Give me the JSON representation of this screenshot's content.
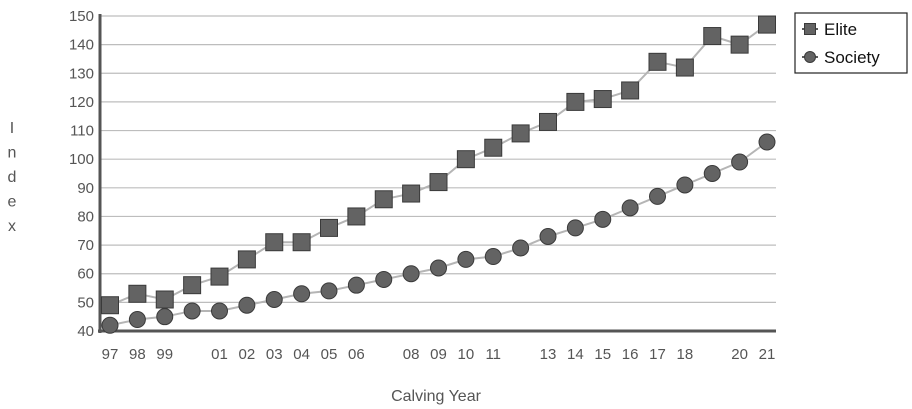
{
  "chart_data": {
    "type": "line",
    "xlabel": "Calving Year",
    "ylabel": "I n d e x",
    "ylim": [
      40,
      150
    ],
    "yticks": [
      40,
      50,
      60,
      70,
      80,
      90,
      100,
      110,
      120,
      130,
      140,
      150
    ],
    "x": [
      1997,
      1998,
      1999,
      2000,
      2001,
      2002,
      2003,
      2004,
      2005,
      2006,
      2007,
      2008,
      2009,
      2010,
      2011,
      2012,
      2013,
      2014,
      2015,
      2016,
      2017,
      2018,
      2019,
      2020,
      2021
    ],
    "xtick_labels": {
      "1997": "97",
      "1998": "98",
      "1999": "99",
      "2001": "01",
      "2002": "02",
      "2003": "03",
      "2004": "04",
      "2005": "05",
      "2006": "06",
      "2008": "08",
      "2009": "09",
      "2010": "10",
      "2011": "11",
      "2013": "13",
      "2014": "14",
      "2015": "15",
      "2016": "16",
      "2017": "17",
      "2018": "18",
      "2020": "20",
      "2021": "21"
    },
    "grid": true,
    "legend_position": "top-right",
    "series": [
      {
        "name": "Elite",
        "marker": "square",
        "values": [
          49,
          53,
          51,
          56,
          59,
          65,
          71,
          71,
          76,
          80,
          86,
          88,
          92,
          100,
          104,
          109,
          113,
          120,
          121,
          124,
          134,
          132,
          143,
          140,
          147
        ]
      },
      {
        "name": "Society",
        "marker": "circle",
        "values": [
          42,
          44,
          45,
          47,
          47,
          49,
          51,
          53,
          54,
          56,
          58,
          60,
          62,
          65,
          66,
          69,
          73,
          76,
          79,
          83,
          87,
          91,
          95,
          99,
          106
        ]
      }
    ],
    "colors": {
      "marker_fill": "#636363",
      "marker_stroke": "#3a3a3a",
      "line": "#b5b5b5",
      "grid": "#bdbdbd",
      "axis": "#555555",
      "text": "#555555"
    }
  }
}
